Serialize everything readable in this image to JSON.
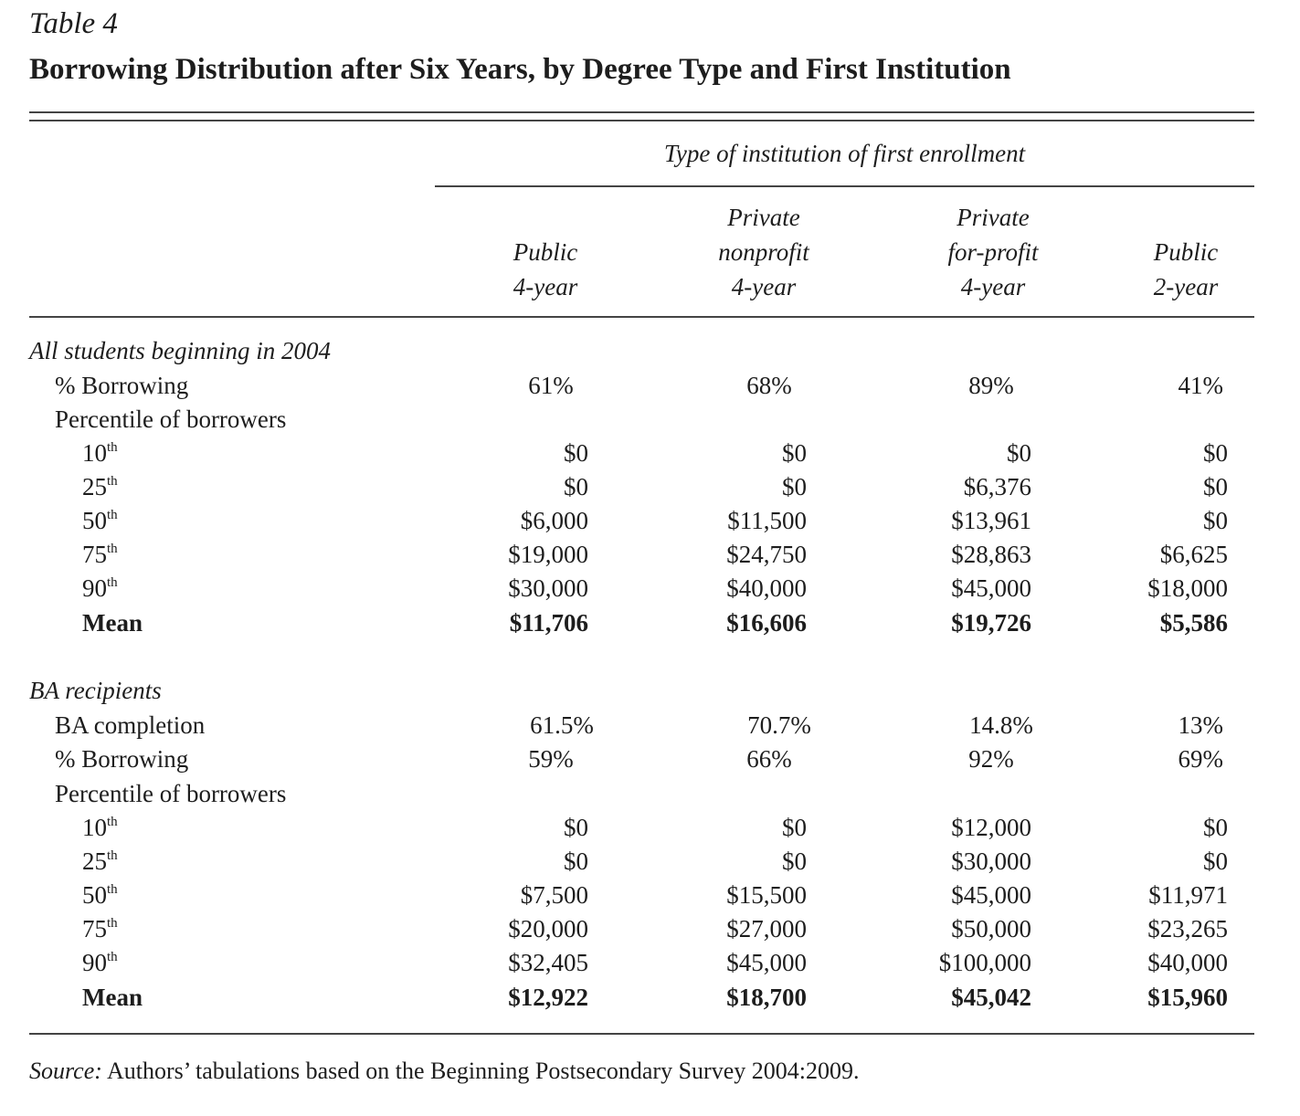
{
  "table_label": "Table 4",
  "title": "Borrowing Distribution after Six Years, by Degree Type and First Institution",
  "column_group_header": "Type of institution of first enrollment",
  "columns": [
    {
      "line1": "",
      "line2": "Public",
      "line3": "4-year"
    },
    {
      "line1": "Private",
      "line2": "nonprofit",
      "line3": "4-year"
    },
    {
      "line1": "Private",
      "line2": "for-profit",
      "line3": "4-year"
    },
    {
      "line1": "",
      "line2": "Public",
      "line3": "2-year"
    }
  ],
  "sections": [
    {
      "heading": "All students beginning in 2004",
      "rows": [
        {
          "label": "% Borrowing",
          "values": [
            "61%",
            "68%",
            "89%",
            "41%"
          ]
        },
        {
          "label": "Percentile of borrowers",
          "values": [
            "",
            "",
            "",
            ""
          ]
        },
        {
          "label": "10",
          "sup": "th",
          "values": [
            "$0",
            "$0",
            "$0",
            "$0"
          ]
        },
        {
          "label": "25",
          "sup": "th",
          "values": [
            "$0",
            "$0",
            "$6,376",
            "$0"
          ]
        },
        {
          "label": "50",
          "sup": "th",
          "values": [
            "$6,000",
            "$11,500",
            "$13,961",
            "$0"
          ]
        },
        {
          "label": "75",
          "sup": "th",
          "values": [
            "$19,000",
            "$24,750",
            "$28,863",
            "$6,625"
          ]
        },
        {
          "label": "90",
          "sup": "th",
          "values": [
            "$30,000",
            "$40,000",
            "$45,000",
            "$18,000"
          ]
        },
        {
          "label": "Mean",
          "values": [
            "$11,706",
            "$16,606",
            "$19,726",
            "$5,586"
          ]
        }
      ]
    },
    {
      "heading": "BA recipients",
      "rows": [
        {
          "label": "BA completion",
          "values": [
            "61.5%",
            "70.7%",
            "14.8%",
            "13%"
          ]
        },
        {
          "label": "% Borrowing",
          "values": [
            "59%",
            "66%",
            "92%",
            "69%"
          ]
        },
        {
          "label": "Percentile of borrowers",
          "values": [
            "",
            "",
            "",
            ""
          ]
        },
        {
          "label": "10",
          "sup": "th",
          "values": [
            "$0",
            "$0",
            "$12,000",
            "$0"
          ]
        },
        {
          "label": "25",
          "sup": "th",
          "values": [
            "$0",
            "$0",
            "$30,000",
            "$0"
          ]
        },
        {
          "label": "50",
          "sup": "th",
          "values": [
            "$7,500",
            "$15,500",
            "$45,000",
            "$11,971"
          ]
        },
        {
          "label": "75",
          "sup": "th",
          "values": [
            "$20,000",
            "$27,000",
            "$50,000",
            "$23,265"
          ]
        },
        {
          "label": "90",
          "sup": "th",
          "values": [
            "$32,405",
            "$45,000",
            "$100,000",
            "$40,000"
          ]
        },
        {
          "label": "Mean",
          "values": [
            "$12,922",
            "$18,700",
            "$45,042",
            "$15,960"
          ]
        }
      ]
    }
  ],
  "source": {
    "label": "Source:",
    "text": "Authors’ tabulations based on the Beginning Postsecondary Survey 2004:2009."
  }
}
